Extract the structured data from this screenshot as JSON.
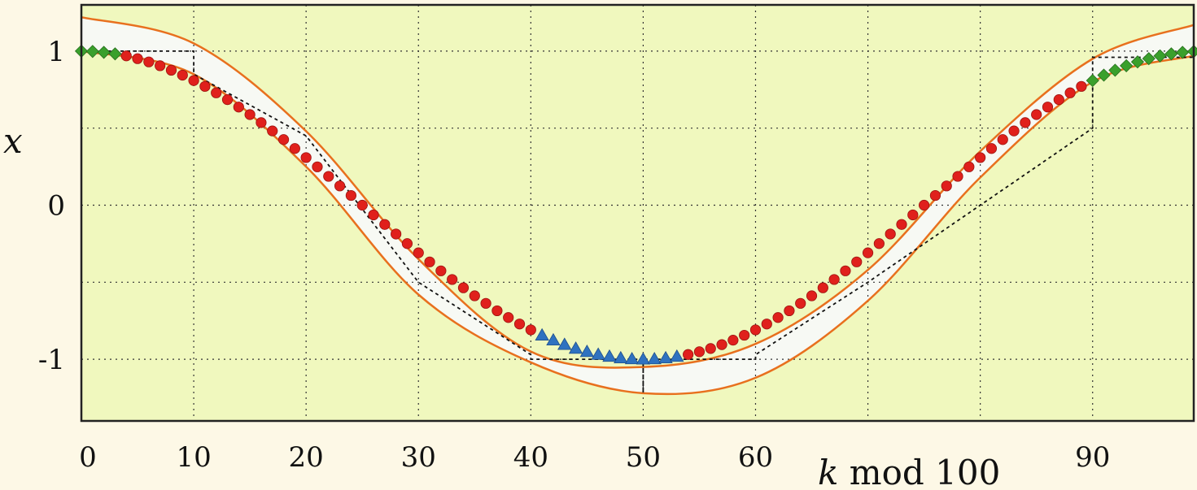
{
  "chart_data": {
    "type": "scatter",
    "title": "",
    "xlabel_var": "k",
    "xlabel_rest": " mod 100",
    "ylabel": "x",
    "xlim": [
      0,
      99
    ],
    "ylim": [
      -1.4,
      1.3
    ],
    "grid": true,
    "x_ticks": [
      0,
      10,
      20,
      30,
      40,
      50,
      60,
      90
    ],
    "x_tick_labels": [
      "0",
      "10",
      "20",
      "30",
      "40",
      "50",
      "60",
      "90"
    ],
    "x_grid": [
      0,
      10,
      20,
      30,
      40,
      50,
      60,
      70,
      80,
      90
    ],
    "y_ticks": [
      1,
      0,
      -1
    ],
    "y_tick_labels": [
      "1",
      "0",
      "-1"
    ],
    "y_grid": [
      1,
      0.5,
      0,
      -0.5,
      -1
    ],
    "colors": {
      "background": "#f0f8be",
      "band_fill": "#f7f9f4",
      "band_edge": "#e8701e",
      "red": "#e0201c",
      "green": "#3aa02c",
      "blue": "#2f72c0",
      "grid": "#333333"
    },
    "envelope": {
      "upper": [
        [
          0,
          1.22
        ],
        [
          10,
          1.05
        ],
        [
          20,
          0.48
        ],
        [
          30,
          -0.35
        ],
        [
          40,
          -0.95
        ],
        [
          50,
          -1.05
        ],
        [
          60,
          -0.9
        ],
        [
          70,
          -0.42
        ],
        [
          80,
          0.35
        ],
        [
          90,
          0.95
        ],
        [
          99,
          1.17
        ]
      ],
      "lower": [
        [
          0,
          1.0
        ],
        [
          10,
          0.85
        ],
        [
          20,
          0.25
        ],
        [
          30,
          -0.58
        ],
        [
          40,
          -1.02
        ],
        [
          50,
          -1.22
        ],
        [
          60,
          -1.12
        ],
        [
          70,
          -0.62
        ],
        [
          80,
          0.18
        ],
        [
          90,
          0.8
        ],
        [
          99,
          0.97
        ]
      ]
    },
    "staircase": [
      [
        0,
        1
      ],
      [
        10,
        1
      ],
      [
        10,
        0.85
      ],
      [
        20,
        0.45
      ],
      [
        30,
        -0.5
      ],
      [
        40,
        -0.97
      ],
      [
        40,
        -1
      ],
      [
        50,
        -1
      ],
      [
        50,
        -1.22
      ],
      [
        50,
        -1
      ],
      [
        60,
        -1
      ],
      [
        60,
        -0.97
      ],
      [
        70,
        -0.5
      ],
      [
        80,
        0
      ],
      [
        90,
        0.5
      ],
      [
        90,
        0.96
      ],
      [
        99,
        0.96
      ]
    ],
    "series": [
      {
        "marker": "diamond",
        "color": "green",
        "x_start": 0,
        "x_end": 3,
        "step": 1,
        "x": [],
        "y": []
      },
      {
        "marker": "circle",
        "color": "red",
        "x_start": 4,
        "x_end": 40,
        "step": 1,
        "x": [],
        "y": []
      },
      {
        "marker": "triangle",
        "color": "blue",
        "x_start": 41,
        "x_end": 53,
        "step": 1,
        "x": [],
        "y": []
      },
      {
        "marker": "circle",
        "color": "red",
        "x_start": 54,
        "x_end": 89,
        "step": 1,
        "x": [],
        "y": []
      },
      {
        "marker": "diamond",
        "color": "green",
        "x_start": 90,
        "x_end": 99,
        "step": 1,
        "x": [],
        "y": []
      }
    ]
  }
}
